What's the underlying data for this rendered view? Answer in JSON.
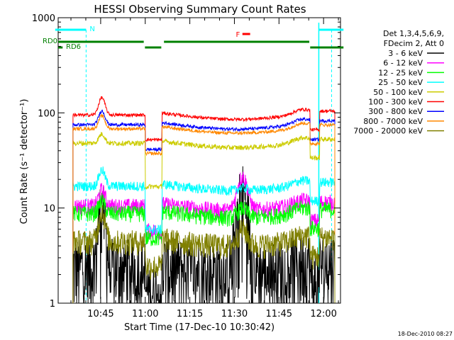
{
  "chart_data": {
    "type": "line",
    "title": "HESSI Observing Summary Count Rates",
    "xlabel": "Start Time (17-Dec-10 10:30:42)",
    "ylabel": "Count Rate (s⁻¹ detector⁻¹)",
    "yscale": "log",
    "ylim": [
      1,
      1000
    ],
    "xlim_minutes": [
      0,
      95
    ],
    "x_unit": "minutes after 10:30:42",
    "yticks": [
      {
        "value": 1,
        "label": "1"
      },
      {
        "value": 10,
        "label": "10"
      },
      {
        "value": 100,
        "label": "100"
      },
      {
        "value": 1000,
        "label": "1000"
      }
    ],
    "xticks": [
      {
        "minute": 14.3,
        "label": "10:45"
      },
      {
        "minute": 29.3,
        "label": "11:00"
      },
      {
        "minute": 44.3,
        "label": "11:15"
      },
      {
        "minute": 59.3,
        "label": "11:30"
      },
      {
        "minute": 74.3,
        "label": "11:45"
      },
      {
        "minute": 89.3,
        "label": "12:00"
      }
    ],
    "legend_header": [
      "Det 1,3,4,5,6,9,",
      "FDecim 2, Att 0"
    ],
    "legend_position": "right",
    "series": [
      {
        "name": "3 - 6 keV",
        "color": "#000000",
        "base": 2.5,
        "noise": 0.45,
        "flare": 8,
        "f2": 13,
        "trough": 0.7
      },
      {
        "name": "6 - 12 keV",
        "color": "#ff00ff",
        "base": 10.5,
        "noise": 0.1,
        "flare": 5,
        "f2": 12,
        "trough": 0
      },
      {
        "name": "12 - 25 keV",
        "color": "#00ff00",
        "base": 8.8,
        "noise": 0.1,
        "flare": 3,
        "f2": 2,
        "trough": 0
      },
      {
        "name": "25 - 50 keV",
        "color": "#00ffff",
        "base": 17,
        "noise": 0.06,
        "flare": 8,
        "f2": 1,
        "trough": 0
      },
      {
        "name": "50 - 100 keV",
        "color": "#cccc00",
        "base": 48,
        "noise": 0.03,
        "flare": 12,
        "f2": 0,
        "trough": 0
      },
      {
        "name": "100 - 300 keV",
        "color": "#ff0000",
        "base": 95,
        "noise": 0.02,
        "flare": 50,
        "f2": 0,
        "trough": 0
      },
      {
        "name": "300 - 800 keV",
        "color": "#0000ff",
        "base": 75,
        "noise": 0.02,
        "flare": 30,
        "f2": 0,
        "trough": 0
      },
      {
        "name": "800 - 7000 keV",
        "color": "#ff8800",
        "base": 68,
        "noise": 0.02,
        "flare": 25,
        "f2": 0,
        "trough": 0
      },
      {
        "name": "7000 - 20000 keV",
        "color": "#808000",
        "base": 4.5,
        "noise": 0.15,
        "flare": 5,
        "f2": 2,
        "trough": 0
      }
    ],
    "data_gaps_minutes": [
      [
        29.3,
        35.0
      ],
      [
        84.8,
        88.0
      ]
    ],
    "annotations": {
      "night_label": "N",
      "flare_label": "F",
      "rd0_label": "RD0",
      "rd6_label": "RD6"
    },
    "footer_date": "18-Dec-2010 08:27",
    "colors": {
      "saa_cyan": "#00ffff",
      "flare_red": "#ff0000",
      "rd_green": "#008000"
    }
  }
}
